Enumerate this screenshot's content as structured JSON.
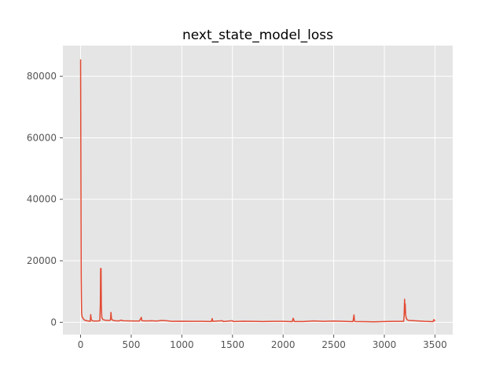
{
  "chart_data": {
    "type": "line",
    "title": "next_state_model_loss",
    "xlabel": "",
    "ylabel": "",
    "xlim": [
      -175,
      3675
    ],
    "ylim": [
      -4000,
      90000
    ],
    "grid": true,
    "legend": "none",
    "x_ticks": [
      0,
      500,
      1000,
      1500,
      2000,
      2500,
      3000,
      3500
    ],
    "x_tick_labels": [
      "0",
      "500",
      "1000",
      "1500",
      "2000",
      "2500",
      "3000",
      "3500"
    ],
    "y_ticks": [
      0,
      20000,
      40000,
      60000,
      80000
    ],
    "y_tick_labels": [
      "0",
      "20000",
      "40000",
      "60000",
      "80000"
    ],
    "series": [
      {
        "color": "#e24a33",
        "points": [
          [
            0,
            85500
          ],
          [
            3,
            50000
          ],
          [
            6,
            15000
          ],
          [
            8,
            8000
          ],
          [
            10,
            3000
          ],
          [
            15,
            1800
          ],
          [
            20,
            1500
          ],
          [
            30,
            1000
          ],
          [
            40,
            700
          ],
          [
            60,
            500
          ],
          [
            80,
            400
          ],
          [
            95,
            300
          ],
          [
            100,
            2500
          ],
          [
            105,
            900
          ],
          [
            115,
            500
          ],
          [
            130,
            400
          ],
          [
            160,
            400
          ],
          [
            190,
            500
          ],
          [
            195,
            6000
          ],
          [
            198,
            17500
          ],
          [
            202,
            17500
          ],
          [
            205,
            5000
          ],
          [
            210,
            1500
          ],
          [
            220,
            900
          ],
          [
            240,
            700
          ],
          [
            280,
            600
          ],
          [
            295,
            700
          ],
          [
            300,
            3200
          ],
          [
            305,
            1200
          ],
          [
            315,
            700
          ],
          [
            340,
            500
          ],
          [
            380,
            450
          ],
          [
            400,
            700
          ],
          [
            420,
            500
          ],
          [
            500,
            450
          ],
          [
            580,
            400
          ],
          [
            600,
            1600
          ],
          [
            605,
            500
          ],
          [
            650,
            450
          ],
          [
            700,
            500
          ],
          [
            750,
            400
          ],
          [
            800,
            600
          ],
          [
            850,
            500
          ],
          [
            900,
            300
          ],
          [
            1000,
            350
          ],
          [
            1100,
            300
          ],
          [
            1200,
            300
          ],
          [
            1290,
            250
          ],
          [
            1300,
            1200
          ],
          [
            1305,
            300
          ],
          [
            1400,
            500
          ],
          [
            1410,
            250
          ],
          [
            1500,
            500
          ],
          [
            1510,
            250
          ],
          [
            1600,
            350
          ],
          [
            1700,
            300
          ],
          [
            1800,
            250
          ],
          [
            1900,
            300
          ],
          [
            2000,
            300
          ],
          [
            2090,
            200
          ],
          [
            2100,
            1300
          ],
          [
            2110,
            250
          ],
          [
            2200,
            250
          ],
          [
            2300,
            450
          ],
          [
            2400,
            300
          ],
          [
            2500,
            400
          ],
          [
            2600,
            300
          ],
          [
            2690,
            200
          ],
          [
            2700,
            2400
          ],
          [
            2705,
            500
          ],
          [
            2710,
            250
          ],
          [
            2800,
            200
          ],
          [
            2900,
            150
          ],
          [
            3000,
            250
          ],
          [
            3100,
            300
          ],
          [
            3190,
            300
          ],
          [
            3195,
            2000
          ],
          [
            3200,
            7500
          ],
          [
            3203,
            3000
          ],
          [
            3206,
            6000
          ],
          [
            3210,
            2500
          ],
          [
            3215,
            1500
          ],
          [
            3225,
            800
          ],
          [
            3240,
            600
          ],
          [
            3300,
            500
          ],
          [
            3350,
            400
          ],
          [
            3400,
            300
          ],
          [
            3450,
            250
          ],
          [
            3480,
            200
          ],
          [
            3490,
            900
          ],
          [
            3500,
            300
          ]
        ]
      }
    ]
  }
}
